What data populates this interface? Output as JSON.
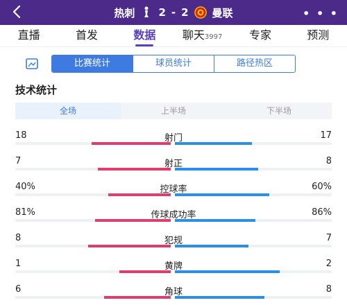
{
  "header": {
    "back_icon": "chevron-left-icon",
    "home_team": "热刺",
    "away_team": "曼联",
    "score_home": "2",
    "score_sep": "-",
    "score_away": "2",
    "more_icon": "more-dots-icon",
    "more_label": "• • •",
    "colors": {
      "bg": "#4b2a8a"
    }
  },
  "nav": {
    "items": [
      {
        "label": "直播"
      },
      {
        "label": "首发"
      },
      {
        "label": "数据",
        "active": true
      },
      {
        "label": "聊天",
        "count": "3997"
      },
      {
        "label": "专家"
      },
      {
        "label": "预测"
      }
    ]
  },
  "subtabs": {
    "share_icon": "share-image-icon",
    "items": [
      {
        "label": "比赛统计",
        "active": true
      },
      {
        "label": "球员统计"
      },
      {
        "label": "路径热区"
      }
    ]
  },
  "section_title": "技术统计",
  "halftabs": [
    {
      "label": "全场",
      "active": true
    },
    {
      "label": "上半场"
    },
    {
      "label": "下半场"
    }
  ],
  "colors": {
    "home": "#e03c6e",
    "away": "#2a8fe6",
    "accent": "#3d7be0"
  },
  "stats": [
    {
      "label": "射门",
      "home": "18",
      "away": "17",
      "home_share": 0.51,
      "away_share": 0.49
    },
    {
      "label": "射正",
      "home": "7",
      "away": "8",
      "home_share": 0.47,
      "away_share": 0.53
    },
    {
      "label": "控球率",
      "home": "40%",
      "away": "60%",
      "home_share": 0.4,
      "away_share": 0.6
    },
    {
      "label": "传球成功率",
      "home": "81%",
      "away": "86%",
      "home_share": 0.485,
      "away_share": 0.515
    },
    {
      "label": "犯规",
      "home": "8",
      "away": "7",
      "home_share": 0.53,
      "away_share": 0.47
    },
    {
      "label": "黄牌",
      "home": "1",
      "away": "2",
      "home_share": 0.33,
      "away_share": 0.67
    },
    {
      "label": "角球",
      "home": "6",
      "away": "8",
      "home_share": 0.43,
      "away_share": 0.57
    }
  ]
}
